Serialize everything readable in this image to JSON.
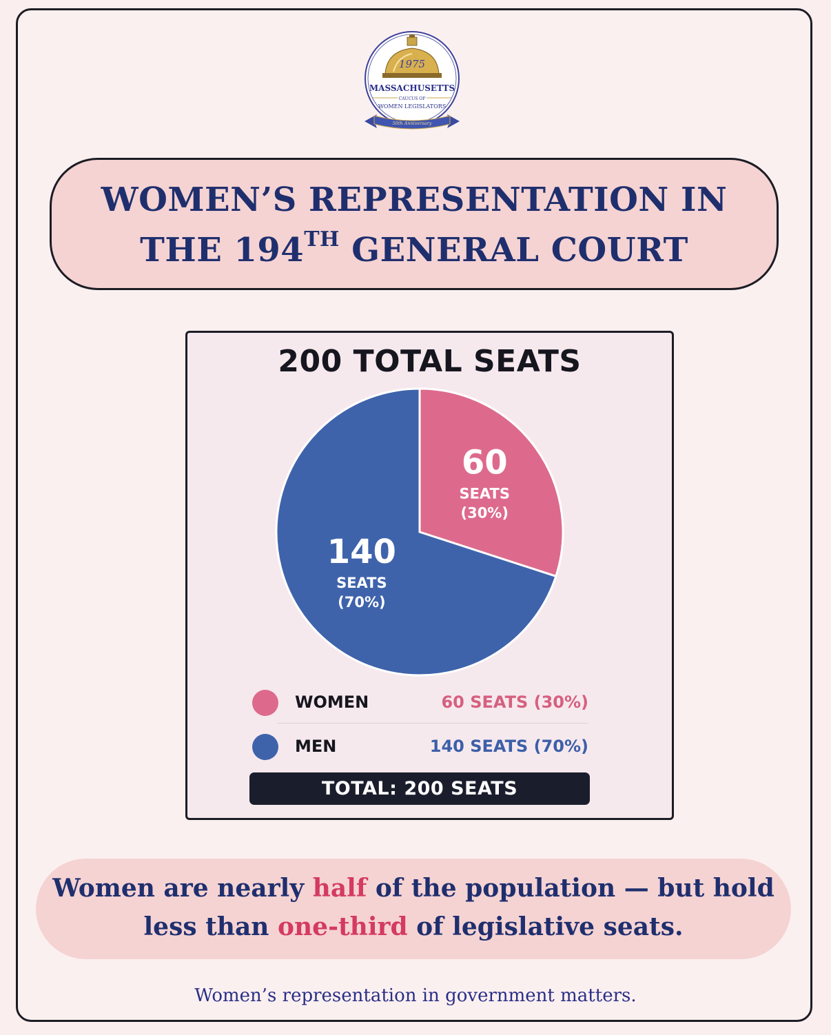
{
  "logo": {
    "year": "1975",
    "name": "MASSACHUSETTS",
    "caucus_of": "CAUCUS OF",
    "women_legislators": "WOMEN LEGISLATORS",
    "ribbon": "50th Anniversary"
  },
  "title": {
    "line1": "WOMEN’S REPRESENTATION IN",
    "line2_prefix": "THE 194",
    "line2_sup": "TH",
    "line2_suffix": " GENERAL COURT"
  },
  "chart_data": {
    "type": "pie",
    "title": "200 TOTAL SEATS",
    "total": 200,
    "slices": [
      {
        "name": "WOMEN",
        "value": 60,
        "percent": 30,
        "color": "#dd6a8c",
        "label_value": "60",
        "label_unit": "SEATS",
        "label_pct": "(30%)",
        "legend_label": "WOMEN",
        "legend_value": "60 SEATS (30%)",
        "legend_color": "#d6607f"
      },
      {
        "name": "MEN",
        "value": 140,
        "percent": 70,
        "color": "#3f63ab",
        "label_value": "140",
        "label_unit": "SEATS",
        "label_pct": "(70%)",
        "legend_label": "MEN",
        "legend_value": "140 SEATS (70%)",
        "legend_color": "#3c5fa8"
      }
    ],
    "total_label": "TOTAL: 200 SEATS"
  },
  "message": {
    "l1_a": "Women are nearly ",
    "l1_hl": "half",
    "l1_b": " of the population — but hold",
    "l2_a": "less than ",
    "l2_hl": "one-third",
    "l2_b": " of legislative seats."
  },
  "footer": "Women’s representation in government matters.",
  "colors": {
    "navy": "#1f2f6e",
    "highlight": "#d43a62",
    "banner": "#f5d3d3",
    "women": "#dd6a8c",
    "men": "#3f63ab"
  }
}
